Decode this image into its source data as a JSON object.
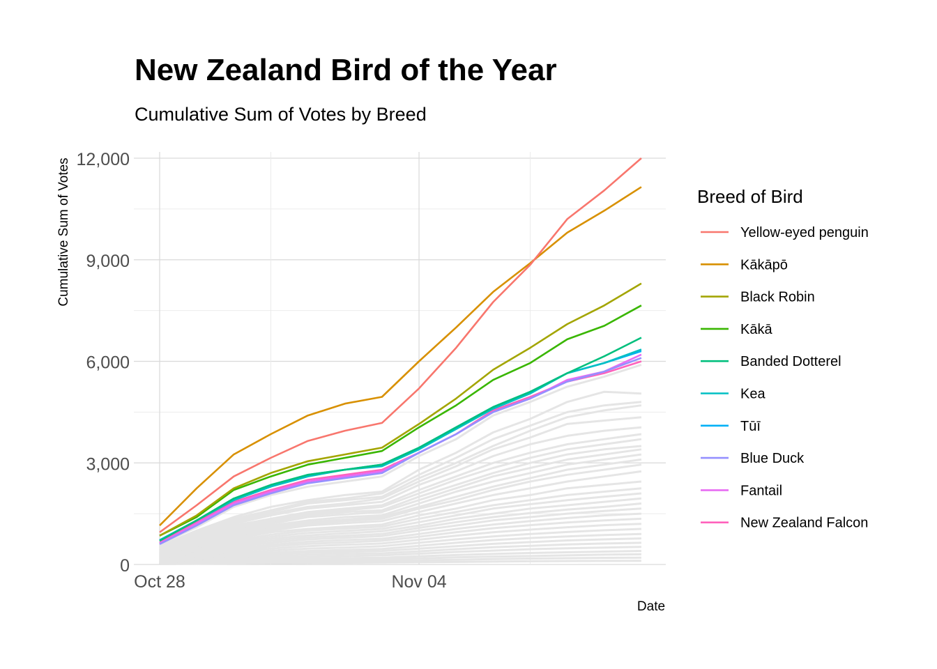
{
  "chart_data": {
    "type": "line",
    "title": "New Zealand Bird of the Year",
    "subtitle": "Cumulative Sum of Votes by Breed",
    "xlabel": "Date",
    "ylabel": "Cumulative Sum of Votes",
    "x": [
      "2019-10-28",
      "2019-10-29",
      "2019-10-30",
      "2019-10-31",
      "2019-11-01",
      "2019-11-02",
      "2019-11-03",
      "2019-11-04",
      "2019-11-05",
      "2019-11-06",
      "2019-11-07",
      "2019-11-08",
      "2019-11-09",
      "2019-11-10"
    ],
    "x_ticks": [
      {
        "date": "2019-10-28",
        "label": "Oct 28"
      },
      {
        "date": "2019-11-04",
        "label": "Nov 04"
      }
    ],
    "x_minor_gridlines": [
      "2019-10-31",
      "2019-11-07"
    ],
    "y_ticks": [
      {
        "value": 0,
        "label": "0"
      },
      {
        "value": 3000,
        "label": "3,000"
      },
      {
        "value": 6000,
        "label": "6,000"
      },
      {
        "value": 9000,
        "label": "9,000"
      },
      {
        "value": 12000,
        "label": "12,000"
      }
    ],
    "ylim": [
      0,
      12000
    ],
    "legend": {
      "title": "Breed of Bird",
      "position": "right"
    },
    "grid": true,
    "series": [
      {
        "name": "Yellow-eyed penguin",
        "color": "#F8766D",
        "values": [
          950,
          1750,
          2600,
          3150,
          3650,
          3950,
          4180,
          5200,
          6400,
          7750,
          8850,
          10200,
          11050,
          12000
        ]
      },
      {
        "name": "Kākāpō",
        "color": "#D89000",
        "values": [
          1150,
          2250,
          3250,
          3850,
          4400,
          4750,
          4950,
          6000,
          7000,
          8050,
          8900,
          9800,
          10450,
          11150
        ]
      },
      {
        "name": "Black Robin",
        "color": "#A3A500",
        "values": [
          850,
          1450,
          2250,
          2700,
          3050,
          3250,
          3450,
          4150,
          4900,
          5750,
          6400,
          7100,
          7650,
          8300
        ]
      },
      {
        "name": "Kākā",
        "color": "#39B600",
        "values": [
          850,
          1400,
          2200,
          2600,
          2950,
          3150,
          3350,
          4050,
          4700,
          5450,
          5950,
          6650,
          7050,
          7650
        ]
      },
      {
        "name": "Banded Dotterel",
        "color": "#00BF7D",
        "values": [
          700,
          1300,
          1950,
          2350,
          2650,
          2800,
          2950,
          3450,
          4050,
          4650,
          5100,
          5650,
          6150,
          6700
        ]
      },
      {
        "name": "Kea",
        "color": "#00BFC4",
        "values": [
          700,
          1300,
          1900,
          2300,
          2600,
          2800,
          2900,
          3400,
          4000,
          4600,
          5050,
          5650,
          5950,
          6350
        ]
      },
      {
        "name": "Tūī",
        "color": "#00B0F6",
        "values": [
          720,
          1300,
          1900,
          2300,
          2650,
          2800,
          2950,
          3450,
          4050,
          4650,
          5100,
          5650,
          5950,
          6300
        ]
      },
      {
        "name": "Blue Duck",
        "color": "#9590FF",
        "values": [
          600,
          1150,
          1750,
          2100,
          2400,
          2550,
          2700,
          3300,
          3850,
          4500,
          4900,
          5400,
          5700,
          6100
        ]
      },
      {
        "name": "Fantail",
        "color": "#E76BF3",
        "values": [
          620,
          1200,
          1800,
          2150,
          2450,
          2600,
          2750,
          3300,
          3850,
          4500,
          4900,
          5450,
          5700,
          6200
        ]
      },
      {
        "name": "New Zealand Falcon",
        "color": "#FF62BC",
        "values": [
          640,
          1250,
          1850,
          2200,
          2500,
          2650,
          2800,
          3300,
          3850,
          4550,
          4950,
          5400,
          5650,
          6000
        ]
      }
    ],
    "other_series_color": "#E5E5E5",
    "other_series": [
      {
        "values": [
          600,
          1100,
          1700,
          2050,
          2300,
          2450,
          2600,
          3200,
          3700,
          4400,
          4800,
          5250,
          5550,
          5900
        ]
      },
      {
        "values": [
          550,
          1000,
          1400,
          1700,
          1900,
          2050,
          2150,
          2800,
          3300,
          3900,
          4300,
          4800,
          5100,
          5050
        ]
      },
      {
        "values": [
          500,
          950,
          1350,
          1600,
          1850,
          1950,
          2100,
          2650,
          3150,
          3700,
          4100,
          4500,
          4700,
          4800
        ]
      },
      {
        "values": [
          500,
          900,
          1300,
          1550,
          1800,
          1900,
          2000,
          2550,
          3000,
          3500,
          3950,
          4350,
          4550,
          4700
        ]
      },
      {
        "values": [
          450,
          850,
          1250,
          1500,
          1700,
          1800,
          1950,
          2450,
          2900,
          3400,
          3750,
          4150,
          4250,
          4350
        ]
      },
      {
        "values": [
          450,
          800,
          1200,
          1450,
          1650,
          1750,
          1850,
          2350,
          2750,
          3200,
          3550,
          3800,
          3950,
          4050
        ]
      },
      {
        "values": [
          400,
          750,
          1150,
          1350,
          1550,
          1650,
          1750,
          2200,
          2600,
          3000,
          3300,
          3550,
          3700,
          3850
        ]
      },
      {
        "values": [
          400,
          700,
          1100,
          1300,
          1500,
          1600,
          1700,
          2100,
          2500,
          2850,
          3150,
          3400,
          3550,
          3700
        ]
      },
      {
        "values": [
          380,
          680,
          1050,
          1250,
          1450,
          1550,
          1600,
          2000,
          2350,
          2700,
          3000,
          3250,
          3400,
          3500
        ]
      },
      {
        "values": [
          360,
          650,
          1000,
          1200,
          1400,
          1480,
          1550,
          1900,
          2250,
          2600,
          2850,
          3100,
          3250,
          3400
        ]
      },
      {
        "values": [
          340,
          620,
          950,
          1150,
          1300,
          1400,
          1450,
          1800,
          2150,
          2450,
          2700,
          2950,
          3100,
          3250
        ]
      },
      {
        "values": [
          320,
          580,
          900,
          1100,
          1250,
          1330,
          1400,
          1700,
          2000,
          2300,
          2550,
          2800,
          2950,
          3100
        ]
      },
      {
        "values": [
          300,
          550,
          850,
          1050,
          1200,
          1280,
          1350,
          1650,
          1900,
          2200,
          2450,
          2650,
          2800,
          2950
        ]
      },
      {
        "values": [
          280,
          520,
          800,
          1000,
          1150,
          1220,
          1280,
          1550,
          1800,
          2050,
          2250,
          2450,
          2600,
          2750
        ]
      },
      {
        "values": [
          260,
          480,
          750,
          950,
          1050,
          1120,
          1180,
          1450,
          1650,
          1900,
          2050,
          2250,
          2350,
          2450
        ]
      },
      {
        "values": [
          240,
          450,
          700,
          880,
          1000,
          1060,
          1120,
          1350,
          1550,
          1750,
          1900,
          2050,
          2150,
          2250
        ]
      },
      {
        "values": [
          220,
          420,
          650,
          820,
          930,
          990,
          1050,
          1250,
          1450,
          1650,
          1780,
          1900,
          2000,
          2100
        ]
      },
      {
        "values": [
          200,
          380,
          600,
          760,
          860,
          920,
          980,
          1150,
          1350,
          1500,
          1650,
          1750,
          1850,
          1950
        ]
      },
      {
        "values": [
          190,
          350,
          560,
          700,
          800,
          850,
          900,
          1080,
          1250,
          1400,
          1520,
          1620,
          1700,
          1800
        ]
      },
      {
        "values": [
          170,
          320,
          510,
          640,
          740,
          790,
          840,
          1000,
          1150,
          1300,
          1400,
          1500,
          1580,
          1650
        ]
      },
      {
        "values": [
          150,
          290,
          460,
          580,
          670,
          720,
          760,
          900,
          1050,
          1180,
          1280,
          1370,
          1450,
          1500
        ]
      },
      {
        "values": [
          140,
          260,
          420,
          530,
          610,
          650,
          700,
          820,
          950,
          1070,
          1160,
          1240,
          1300,
          1350
        ]
      },
      {
        "values": [
          120,
          230,
          370,
          470,
          540,
          580,
          620,
          730,
          850,
          950,
          1030,
          1100,
          1160,
          1200
        ]
      },
      {
        "values": [
          100,
          200,
          320,
          410,
          470,
          500,
          540,
          640,
          740,
          830,
          900,
          960,
          1010,
          1050
        ]
      },
      {
        "values": [
          90,
          170,
          280,
          350,
          400,
          430,
          460,
          550,
          640,
          720,
          780,
          830,
          870,
          900
        ]
      },
      {
        "values": [
          80,
          150,
          240,
          300,
          350,
          370,
          400,
          470,
          540,
          610,
          660,
          710,
          740,
          770
        ]
      },
      {
        "values": [
          60,
          120,
          200,
          250,
          290,
          310,
          330,
          390,
          450,
          510,
          550,
          590,
          620,
          640
        ]
      },
      {
        "values": [
          50,
          100,
          160,
          200,
          230,
          250,
          270,
          320,
          370,
          410,
          450,
          480,
          500,
          520
        ]
      },
      {
        "values": [
          40,
          80,
          120,
          150,
          175,
          190,
          200,
          240,
          280,
          310,
          340,
          360,
          380,
          400
        ]
      },
      {
        "values": [
          30,
          60,
          90,
          110,
          130,
          140,
          150,
          180,
          210,
          230,
          250,
          270,
          290,
          300
        ]
      },
      {
        "values": [
          20,
          40,
          60,
          75,
          90,
          95,
          100,
          120,
          140,
          160,
          175,
          185,
          195,
          200
        ]
      },
      {
        "values": [
          10,
          20,
          30,
          40,
          45,
          50,
          55,
          65,
          75,
          85,
          95,
          100,
          105,
          110
        ]
      }
    ]
  }
}
